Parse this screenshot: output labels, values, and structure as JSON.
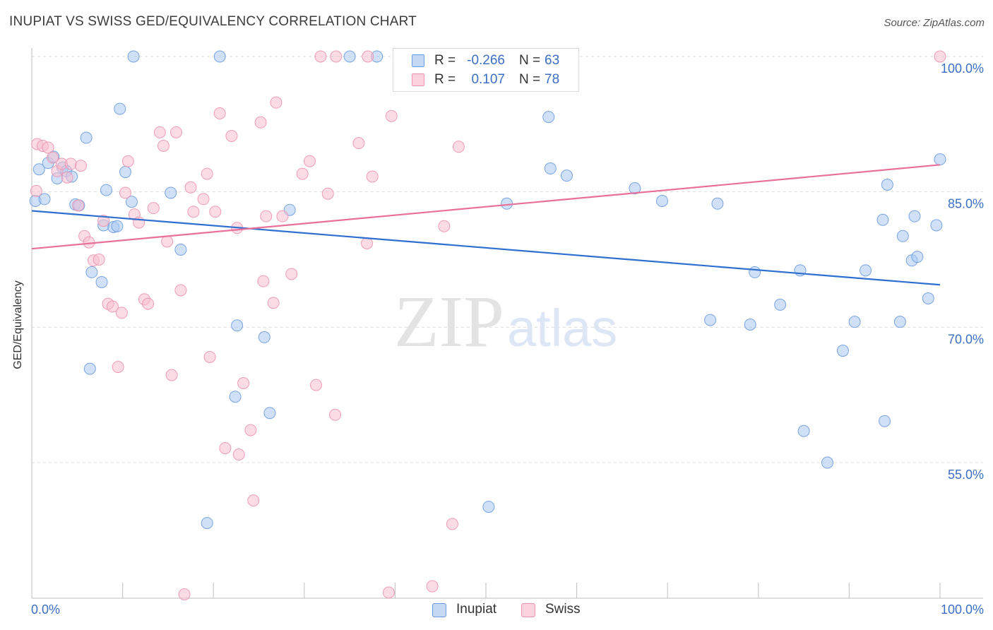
{
  "header": {
    "title": "INUPIAT VS SWISS GED/EQUIVALENCY CORRELATION CHART",
    "source": "Source: ZipAtlas.com"
  },
  "watermark": {
    "zip": "ZIP",
    "atlas": "atlas"
  },
  "legend": {
    "rows": [
      {
        "r_label": "R =",
        "r_value": "-0.266",
        "n_label": "N =",
        "n_value": "63"
      },
      {
        "r_label": "R =",
        "r_value": "0.107",
        "n_label": "N =",
        "n_value": "78"
      }
    ]
  },
  "bottom_legend": {
    "inupiat": "Inupiat",
    "swiss": "Swiss"
  },
  "colors": {
    "inupiat_fill": "#aac8f0",
    "inupiat_stroke": "#6b9be0",
    "inupiat_line": "#2f6fd0",
    "swiss_fill": "#f7c0d0",
    "swiss_stroke": "#ec93b0",
    "swiss_line": "#e8709a",
    "tick_label": "#3a6fc4",
    "grid": "#dcdcdc"
  },
  "chart_data": {
    "type": "scatter",
    "title": "INUPIAT VS SWISS GED/EQUIVALENCY CORRELATION CHART",
    "xlabel": "",
    "ylabel": "GED/Equivalency",
    "xlim": [
      0,
      100
    ],
    "ylim": [
      37,
      102
    ],
    "x_tick_labels": [
      "0.0%",
      "100.0%"
    ],
    "y_ticks": [
      55,
      70,
      85,
      100
    ],
    "y_tick_labels": [
      "55.0%",
      "70.0%",
      "85.0%",
      "100.0%"
    ],
    "grid": true,
    "legend_position": "top-center",
    "series": [
      {
        "name": "Inupiat",
        "r": -0.266,
        "n": 63,
        "trend": {
          "x": [
            0,
            100
          ],
          "y": [
            82.9,
            74.7
          ]
        },
        "points": [
          [
            0.4,
            84.0
          ],
          [
            1.4,
            84.2
          ],
          [
            0.8,
            87.5
          ],
          [
            1.8,
            88.2
          ],
          [
            2.4,
            88.9
          ],
          [
            2.8,
            86.5
          ],
          [
            3.4,
            87.7
          ],
          [
            3.8,
            87.3
          ],
          [
            4.4,
            86.7
          ],
          [
            4.8,
            83.6
          ],
          [
            5.2,
            83.5
          ],
          [
            6.0,
            91.0
          ],
          [
            6.4,
            65.4
          ],
          [
            6.6,
            76.1
          ],
          [
            7.7,
            75.0
          ],
          [
            7.9,
            81.3
          ],
          [
            8.2,
            85.2
          ],
          [
            9.0,
            81.1
          ],
          [
            9.7,
            94.2
          ],
          [
            10.3,
            87.2
          ],
          [
            11.0,
            83.9
          ],
          [
            11.2,
            100.0
          ],
          [
            15.3,
            84.9
          ],
          [
            16.4,
            78.6
          ],
          [
            19.3,
            48.3
          ],
          [
            20.7,
            100.0
          ],
          [
            22.4,
            62.3
          ],
          [
            22.6,
            70.2
          ],
          [
            25.6,
            68.9
          ],
          [
            26.2,
            60.5
          ],
          [
            28.4,
            83.0
          ],
          [
            35.0,
            100.0
          ],
          [
            50.3,
            50.1
          ],
          [
            52.3,
            83.7
          ],
          [
            56.9,
            93.3
          ],
          [
            57.1,
            87.6
          ],
          [
            58.9,
            86.8
          ],
          [
            66.4,
            85.4
          ],
          [
            69.4,
            84.0
          ],
          [
            75.5,
            83.7
          ],
          [
            74.7,
            70.8
          ],
          [
            79.1,
            70.3
          ],
          [
            79.6,
            76.1
          ],
          [
            82.4,
            72.5
          ],
          [
            84.6,
            76.3
          ],
          [
            85.0,
            58.5
          ],
          [
            87.6,
            55.0
          ],
          [
            89.3,
            67.4
          ],
          [
            90.6,
            70.6
          ],
          [
            91.8,
            76.3
          ],
          [
            93.7,
            81.9
          ],
          [
            93.9,
            59.6
          ],
          [
            94.2,
            85.8
          ],
          [
            95.6,
            70.6
          ],
          [
            95.9,
            80.1
          ],
          [
            96.9,
            77.4
          ],
          [
            97.2,
            82.3
          ],
          [
            97.5,
            77.8
          ],
          [
            98.7,
            73.2
          ],
          [
            99.6,
            81.3
          ],
          [
            100.0,
            88.6
          ],
          [
            38.0,
            100.0
          ],
          [
            9.4,
            81.2
          ]
        ]
      },
      {
        "name": "Swiss",
        "r": 0.107,
        "n": 78,
        "trend": {
          "x": [
            0,
            100
          ],
          "y": [
            78.7,
            88.0
          ]
        },
        "points": [
          [
            0.5,
            85.1
          ],
          [
            0.6,
            90.3
          ],
          [
            1.2,
            90.1
          ],
          [
            1.8,
            89.9
          ],
          [
            2.3,
            88.8
          ],
          [
            2.8,
            87.3
          ],
          [
            3.3,
            88.1
          ],
          [
            3.9,
            86.6
          ],
          [
            4.3,
            88.1
          ],
          [
            5.1,
            83.5
          ],
          [
            5.4,
            87.9
          ],
          [
            5.8,
            80.1
          ],
          [
            6.3,
            79.4
          ],
          [
            6.8,
            77.4
          ],
          [
            7.4,
            77.5
          ],
          [
            7.9,
            81.8
          ],
          [
            8.4,
            72.6
          ],
          [
            8.9,
            72.3
          ],
          [
            9.5,
            65.6
          ],
          [
            9.9,
            71.6
          ],
          [
            10.3,
            84.9
          ],
          [
            10.6,
            88.4
          ],
          [
            11.3,
            82.5
          ],
          [
            11.8,
            81.6
          ],
          [
            12.4,
            73.1
          ],
          [
            12.8,
            72.6
          ],
          [
            13.4,
            83.2
          ],
          [
            14.1,
            91.6
          ],
          [
            14.5,
            90.1
          ],
          [
            14.9,
            79.5
          ],
          [
            15.4,
            64.7
          ],
          [
            15.9,
            91.6
          ],
          [
            16.4,
            74.1
          ],
          [
            16.8,
            40.4
          ],
          [
            17.5,
            85.5
          ],
          [
            17.8,
            82.8
          ],
          [
            18.9,
            84.2
          ],
          [
            19.3,
            87.0
          ],
          [
            19.6,
            66.7
          ],
          [
            20.2,
            82.8
          ],
          [
            20.7,
            93.7
          ],
          [
            21.3,
            56.6
          ],
          [
            22.0,
            91.2
          ],
          [
            22.6,
            81.0
          ],
          [
            22.8,
            55.9
          ],
          [
            23.3,
            63.8
          ],
          [
            24.1,
            58.6
          ],
          [
            24.4,
            50.8
          ],
          [
            25.2,
            92.7
          ],
          [
            25.5,
            75.1
          ],
          [
            25.8,
            82.3
          ],
          [
            26.6,
            72.7
          ],
          [
            26.9,
            94.9
          ],
          [
            27.6,
            82.3
          ],
          [
            28.6,
            75.9
          ],
          [
            29.8,
            87.0
          ],
          [
            30.6,
            88.4
          ],
          [
            31.3,
            63.6
          ],
          [
            32.6,
            84.8
          ],
          [
            33.4,
            60.3
          ],
          [
            33.5,
            100.0
          ],
          [
            36.0,
            90.4
          ],
          [
            36.9,
            79.3
          ],
          [
            37.5,
            86.7
          ],
          [
            37.0,
            100.0
          ],
          [
            39.3,
            40.6
          ],
          [
            39.6,
            93.4
          ],
          [
            44.1,
            41.3
          ],
          [
            45.4,
            81.2
          ],
          [
            46.3,
            48.2
          ],
          [
            47.0,
            90.0
          ],
          [
            41.5,
            100.0
          ],
          [
            42.1,
            100.0
          ],
          [
            46.5,
            100.0
          ],
          [
            49.3,
            100.0
          ],
          [
            52.5,
            100.0
          ],
          [
            100.0,
            100.0
          ],
          [
            31.8,
            100.0
          ]
        ]
      }
    ]
  }
}
